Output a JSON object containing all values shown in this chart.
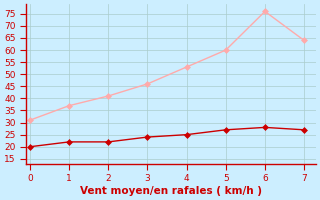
{
  "x": [
    0,
    1,
    2,
    3,
    4,
    5,
    6,
    7
  ],
  "y_moyen": [
    20,
    22,
    22,
    24,
    25,
    27,
    28,
    27
  ],
  "y_rafales": [
    31,
    37,
    41,
    46,
    53,
    60,
    76,
    64
  ],
  "xlabel": "Vent moyen/en rafales ( km/h )",
  "xlim": [
    -0.1,
    7.3
  ],
  "ylim": [
    13,
    79
  ],
  "yticks": [
    15,
    20,
    25,
    30,
    35,
    40,
    45,
    50,
    55,
    60,
    65,
    70,
    75
  ],
  "xticks": [
    0,
    1,
    2,
    3,
    4,
    5,
    6,
    7
  ],
  "color_moyen": "#cc0000",
  "color_rafales": "#ffaaaa",
  "bg_color": "#cceeff",
  "grid_color": "#aacccc",
  "marker_size": 3,
  "linewidth": 1.0,
  "xlabel_fontsize": 7.5,
  "tick_fontsize": 6.5
}
